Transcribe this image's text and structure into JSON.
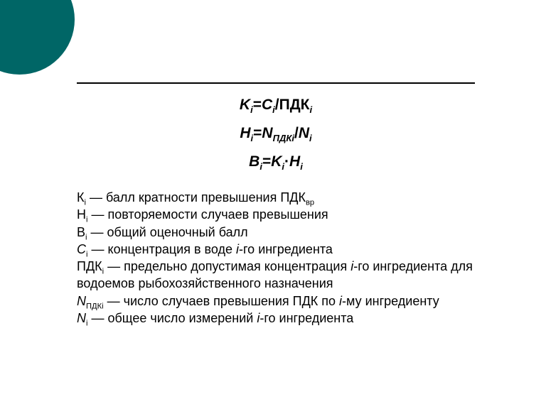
{
  "colors": {
    "accent_circle": "#006666",
    "rule": "#000000",
    "text": "#000000",
    "background": "#ffffff"
  },
  "typography": {
    "family": "Verdana",
    "formula_fontsize_pt": 16,
    "formula_weight": "bold",
    "formula_style": "italic",
    "body_fontsize_pt": 14,
    "body_weight": "normal"
  },
  "formulas": {
    "f1": {
      "K": "K",
      "Ki_sub": "i",
      "eq": "=",
      "C": "C",
      "Ci_sub": "i",
      "slash": "/",
      "PDK": "ПДК",
      "PDK_sub": "i"
    },
    "f2": {
      "H": "Н",
      "Hi_sub": "i",
      "eq": "=",
      "N": "N",
      "N_sub": "ПДКi",
      "slash": "/",
      "N2": "N",
      "N2_sub": "i"
    },
    "f3": {
      "B": "В",
      "Bi_sub": "i",
      "eq": "=",
      "K": "K",
      "Ki_sub": "i",
      "dot": "·",
      "H": "Н",
      "Hi_sub": "i"
    }
  },
  "defs": {
    "d1": {
      "sym": "К",
      "sub": "i",
      "text": " — балл кратности превышения ПДК",
      "tail_sub": "вр"
    },
    "d2": {
      "sym": "Н",
      "sub": "i",
      "text": " — повторяемости случаев превышения"
    },
    "d3": {
      "sym": "В",
      "sub": "i",
      "text": " — общий оценочный балл"
    },
    "d4": {
      "sym": "С",
      "sub": "i",
      "text_a": " — концентрация в воде ",
      "it": "i",
      "text_b": "-го ингредиента"
    },
    "d5": {
      "sym": "ПДК",
      "sub": "i",
      "text_a": " — предельно допустимая концентрация ",
      "it": "i",
      "text_b": "-го ингредиента для водоемов  рыбохозяйственного назначения"
    },
    "d6": {
      "sym": "N",
      "sub": "ПДКi",
      "text_a": " — число случаев превышения ПДК по ",
      "it": "i",
      "text_b": "-му ингредиенту"
    },
    "d7": {
      "sym": "N",
      "sub": "i",
      "text_a": " — общее число измерений ",
      "it": "i",
      "text_b": "-го ингредиента"
    }
  }
}
